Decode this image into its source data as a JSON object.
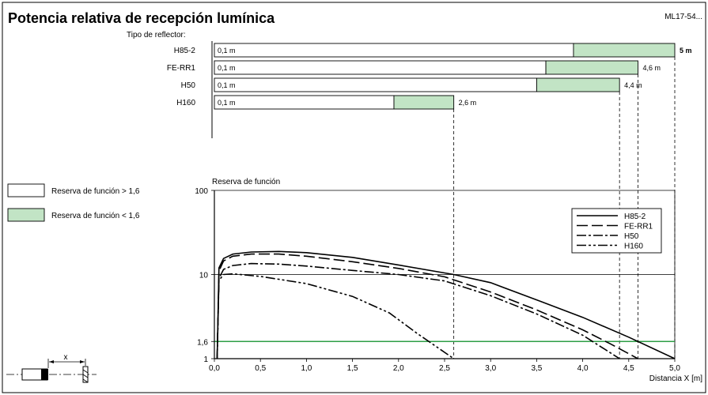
{
  "header": {
    "title": "Potencia relativa de recepción lumínica",
    "code": "ML17-54..."
  },
  "reflector_label": "Tipo de reflector:",
  "range_bars": [
    {
      "name": "H85-2",
      "start_label": "0,1 m",
      "good_until": 3.9,
      "max": 5.0,
      "end_label": "5 m",
      "bold": true
    },
    {
      "name": "FE-RR1",
      "start_label": "0,1 m",
      "good_until": 3.6,
      "max": 4.6,
      "end_label": "4,6 m",
      "bold": false
    },
    {
      "name": "H50",
      "start_label": "0,1 m",
      "good_until": 3.5,
      "max": 4.4,
      "end_label": "4,4 m",
      "bold": false
    },
    {
      "name": "H160",
      "start_label": "0,1 m",
      "good_until": 1.95,
      "max": 2.6,
      "end_label": "2,6 m",
      "bold": false
    }
  ],
  "legend_boxes": [
    {
      "label": "Reserva de función > 1,6",
      "color": "#ffffff"
    },
    {
      "label": "Reserva de función < 1,6",
      "color": "#c2e4c5"
    }
  ],
  "colors": {
    "green_fill": "#c2e4c5",
    "threshold_line": "#2e9e45"
  },
  "chart_data": {
    "type": "line",
    "ylabel": "Reserva de función",
    "xlabel": "Distancia X [m]",
    "xlim": [
      0,
      5
    ],
    "ylim": [
      1,
      100
    ],
    "yscale": "log",
    "xticks": [
      "0,0",
      "0,5",
      "1,0",
      "1,5",
      "2,0",
      "2,5",
      "3,0",
      "3,5",
      "4,0",
      "4,5",
      "5,0"
    ],
    "yticks": [
      {
        "value": 1,
        "label": "1"
      },
      {
        "value": 1.6,
        "label": "1,6"
      },
      {
        "value": 10,
        "label": "10"
      },
      {
        "value": 100,
        "label": "100"
      }
    ],
    "threshold": 1.6,
    "legend_position": "top-right",
    "series": [
      {
        "name": "H85-2",
        "dash": "solid",
        "x": [
          0.03,
          0.05,
          0.1,
          0.2,
          0.4,
          0.7,
          1.0,
          1.5,
          2.0,
          2.6,
          3.0,
          3.5,
          4.0,
          4.5,
          5.0
        ],
        "y": [
          1,
          12,
          15.5,
          17.5,
          18.5,
          18.8,
          18.2,
          16,
          13,
          10,
          8,
          5,
          3.1,
          1.8,
          1
        ]
      },
      {
        "name": "FE-RR1",
        "dash": "long",
        "x": [
          0.03,
          0.05,
          0.1,
          0.2,
          0.4,
          0.7,
          1.0,
          1.5,
          2.0,
          2.5,
          3.0,
          3.5,
          4.0,
          4.3,
          4.6
        ],
        "y": [
          1,
          11,
          14.5,
          16.5,
          17.5,
          17.5,
          16.5,
          14.2,
          11.8,
          9.4,
          6.2,
          3.8,
          2.2,
          1.5,
          1
        ]
      },
      {
        "name": "H50",
        "dash": "dashdot",
        "x": [
          0.03,
          0.05,
          0.1,
          0.2,
          0.4,
          0.7,
          1.0,
          1.5,
          2.0,
          2.5,
          3.0,
          3.5,
          4.0,
          4.4
        ],
        "y": [
          1,
          9,
          11.5,
          12.8,
          13.5,
          13.3,
          12.6,
          11.2,
          10,
          8.4,
          5.6,
          3.4,
          1.9,
          1
        ]
      },
      {
        "name": "H160",
        "dash": "dashdotdot",
        "x": [
          0.03,
          0.05,
          0.1,
          0.2,
          0.5,
          1.0,
          1.5,
          1.9,
          2.2,
          2.6
        ],
        "y": [
          1,
          8.5,
          10,
          10.2,
          9.5,
          7.8,
          5.5,
          3.5,
          2,
          1
        ]
      }
    ]
  },
  "diagram": {
    "distance_label": "x"
  }
}
